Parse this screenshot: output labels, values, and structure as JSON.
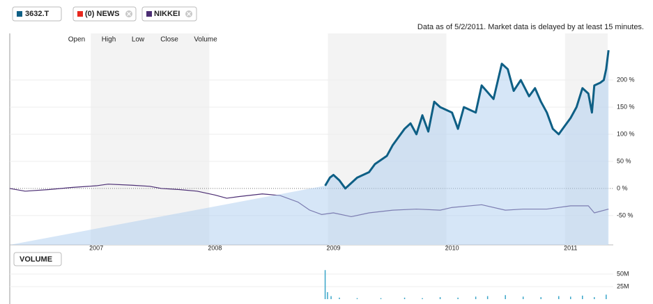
{
  "legend_extra": {
    "label": "(0) NEWS",
    "color": "#e8281e"
  },
  "note": "Data as of 5/2/2011. Market data is delayed by at least 15 minutes.",
  "header_fields": [
    "Open",
    "High",
    "Low",
    "Close",
    "Volume"
  ],
  "volume_button": "VOLUME",
  "chart_data": [
    {
      "type": "line",
      "xlim": [
        2006.27,
        2011.36
      ],
      "xticks": [
        2007,
        2008,
        2009,
        2010,
        2011
      ],
      "ylim": [
        -104,
        286
      ],
      "yticks": [
        {
          "value": 200,
          "label": "200 %"
        },
        {
          "value": 150,
          "label": "150 %"
        },
        {
          "value": 100,
          "label": "100 %"
        },
        {
          "value": 50,
          "label": "50 %"
        },
        {
          "value": 0,
          "label": "0 %"
        },
        {
          "value": -50,
          "label": "-50 %"
        }
      ],
      "grid": true,
      "series": [
        {
          "name": "3632.T",
          "color": "#0e5f85",
          "x": [
            2008.93,
            2008.97,
            2009.0,
            2009.05,
            2009.1,
            2009.15,
            2009.2,
            2009.3,
            2009.35,
            2009.45,
            2009.5,
            2009.55,
            2009.6,
            2009.65,
            2009.7,
            2009.75,
            2009.8,
            2009.85,
            2009.9,
            2010.0,
            2010.05,
            2010.1,
            2010.2,
            2010.25,
            2010.35,
            2010.42,
            2010.47,
            2010.52,
            2010.58,
            2010.65,
            2010.7,
            2010.75,
            2010.8,
            2010.85,
            2010.9,
            2010.95,
            2011.0,
            2011.05,
            2011.1,
            2011.15,
            2011.18,
            2011.2,
            2011.25,
            2011.28,
            2011.3,
            2011.32
          ],
          "values": [
            5,
            20,
            25,
            15,
            0,
            10,
            20,
            30,
            45,
            60,
            80,
            95,
            110,
            120,
            100,
            135,
            105,
            160,
            150,
            140,
            110,
            150,
            140,
            190,
            165,
            230,
            220,
            180,
            200,
            170,
            185,
            160,
            140,
            110,
            100,
            115,
            130,
            150,
            185,
            175,
            140,
            190,
            195,
            200,
            220,
            255
          ]
        },
        {
          "name": "NIKKEI",
          "color": "#4b2d73",
          "x": [
            2006.27,
            2006.4,
            2006.6,
            2006.8,
            2007.0,
            2007.1,
            2007.3,
            2007.45,
            2007.55,
            2007.7,
            2007.85,
            2008.0,
            2008.1,
            2008.2,
            2008.4,
            2008.55,
            2008.7,
            2008.8,
            2008.9,
            2009.0,
            2009.15,
            2009.3,
            2009.5,
            2009.7,
            2009.9,
            2010.0,
            2010.25,
            2010.45,
            2010.6,
            2010.8,
            2011.0,
            2011.15,
            2011.2,
            2011.32
          ],
          "values": [
            0,
            -5,
            -2,
            2,
            5,
            8,
            6,
            4,
            0,
            -2,
            -5,
            -12,
            -18,
            -15,
            -10,
            -13,
            -25,
            -40,
            -48,
            -45,
            -52,
            -45,
            -40,
            -38,
            -40,
            -35,
            -30,
            -40,
            -38,
            -38,
            -32,
            -32,
            -45,
            -38
          ]
        }
      ]
    },
    {
      "type": "bar",
      "xlim": [
        2006.27,
        2011.36
      ],
      "ylim": [
        0,
        62.5
      ],
      "yticks": [
        {
          "value": 50,
          "label": "50M"
        },
        {
          "value": 25,
          "label": "25M"
        }
      ],
      "color": "#3aa6c9",
      "x": [
        2008.93,
        2008.95,
        2008.98,
        2009.05,
        2009.2,
        2009.4,
        2009.6,
        2009.75,
        2009.9,
        2010.05,
        2010.2,
        2010.3,
        2010.45,
        2010.6,
        2010.75,
        2010.9,
        2011.0,
        2011.1,
        2011.2,
        2011.3
      ],
      "values": [
        58,
        14,
        6,
        3,
        2,
        2,
        3,
        2,
        4,
        3,
        5,
        6,
        8,
        5,
        4,
        6,
        5,
        7,
        4,
        9
      ]
    }
  ]
}
